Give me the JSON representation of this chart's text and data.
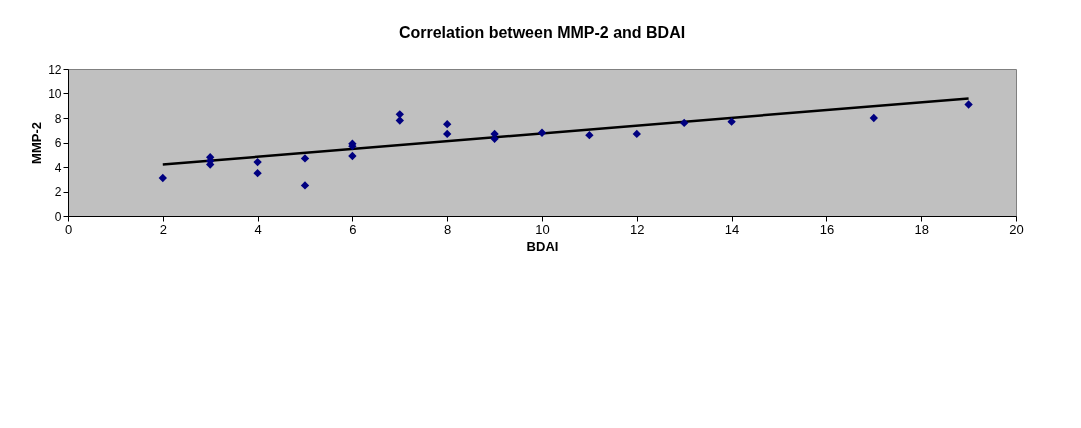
{
  "chart_data": {
    "type": "scatter",
    "title": "Correlation between MMP-2 and BDAI",
    "xlabel": "BDAI",
    "ylabel": "MMP-2",
    "grid": false,
    "xlim": [
      0,
      20
    ],
    "xticks": [
      0,
      2,
      4,
      6,
      8,
      10,
      12,
      14,
      16,
      18,
      20
    ],
    "ylim": [
      0,
      12
    ],
    "yticks": [
      0,
      2,
      4,
      6,
      8,
      10,
      12
    ],
    "series": [
      {
        "color": "#000080",
        "marker": "diamond",
        "x": [
          2,
          3,
          3,
          3,
          4,
          4,
          5,
          5,
          6,
          6,
          6,
          7,
          7,
          8,
          8,
          9,
          9,
          10,
          11,
          12,
          13,
          14,
          17,
          19
        ],
        "values": [
          3.1,
          4.8,
          4.5,
          4.2,
          4.4,
          3.5,
          4.7,
          2.5,
          5.9,
          5.7,
          4.9,
          8.3,
          7.8,
          7.5,
          6.7,
          6.7,
          6.3,
          6.8,
          6.6,
          6.7,
          7.6,
          7.7,
          8.0,
          9.1
        ]
      },
      {
        "type": "line",
        "marker": "none",
        "color": "#000000",
        "x": [
          2,
          19
        ],
        "values": [
          4.2,
          9.6
        ]
      }
    ]
  }
}
